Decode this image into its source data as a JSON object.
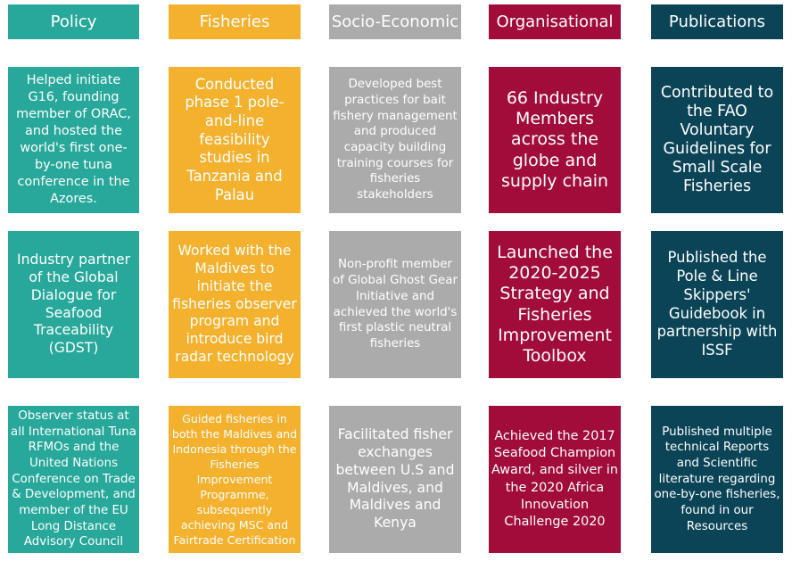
{
  "colors": {
    "policy": "#27a89a",
    "fisheries": "#f3b12e",
    "socio_economic": "#ababab",
    "organisational": "#a10c3a",
    "publications": "#0c4457"
  },
  "headers": [
    "Policy",
    "Fisheries",
    "Socio-Economic",
    "Organisational",
    "Publications"
  ],
  "rows": [
    [
      "Helped initiate G16, founding member of ORAC, and hosted the world's first one-by-one tuna conference in the Azores.",
      "Conducted phase 1 pole-and-line feasibility studies in Tanzania and Palau",
      "Developed best practices for bait fishery management and produced capacity building training courses for fisheries stakeholders",
      "66 Industry Members across the globe and supply chain",
      "Contributed to the FAO Voluntary Guidelines for Small Scale Fisheries"
    ],
    [
      "Industry partner of the Global Dialogue for Seafood Traceability (GDST)",
      "Worked with the Maldives to initiate the fisheries observer program and introduce bird radar technology",
      "Non-profit member of Global Ghost Gear Initiative and achieved the world's first plastic neutral fisheries",
      "Launched the 2020-2025 Strategy and Fisheries Improvement Toolbox",
      "Published the Pole & Line Skippers' Guidebook in partnership with ISSF"
    ],
    [
      "Observer status at all International Tuna RFMOs and the United Nations Conference on Trade & Development, and member of the EU Long Distance Advisory Council",
      "Guided fisheries in both the Maldives and Indonesia through the Fisheries Improvement Programme, subsequently achieving MSC and Fairtrade Certification",
      "Facilitated fisher exchanges between U.S and Maldives, and Maldives and Kenya",
      "Achieved the 2017 Seafood Champion Award, and silver in the 2020 Africa Innovation Challenge 2020",
      "Published multiple technical Reports and Scientific literature regarding one-by-one fisheries, found in our Resources"
    ]
  ]
}
